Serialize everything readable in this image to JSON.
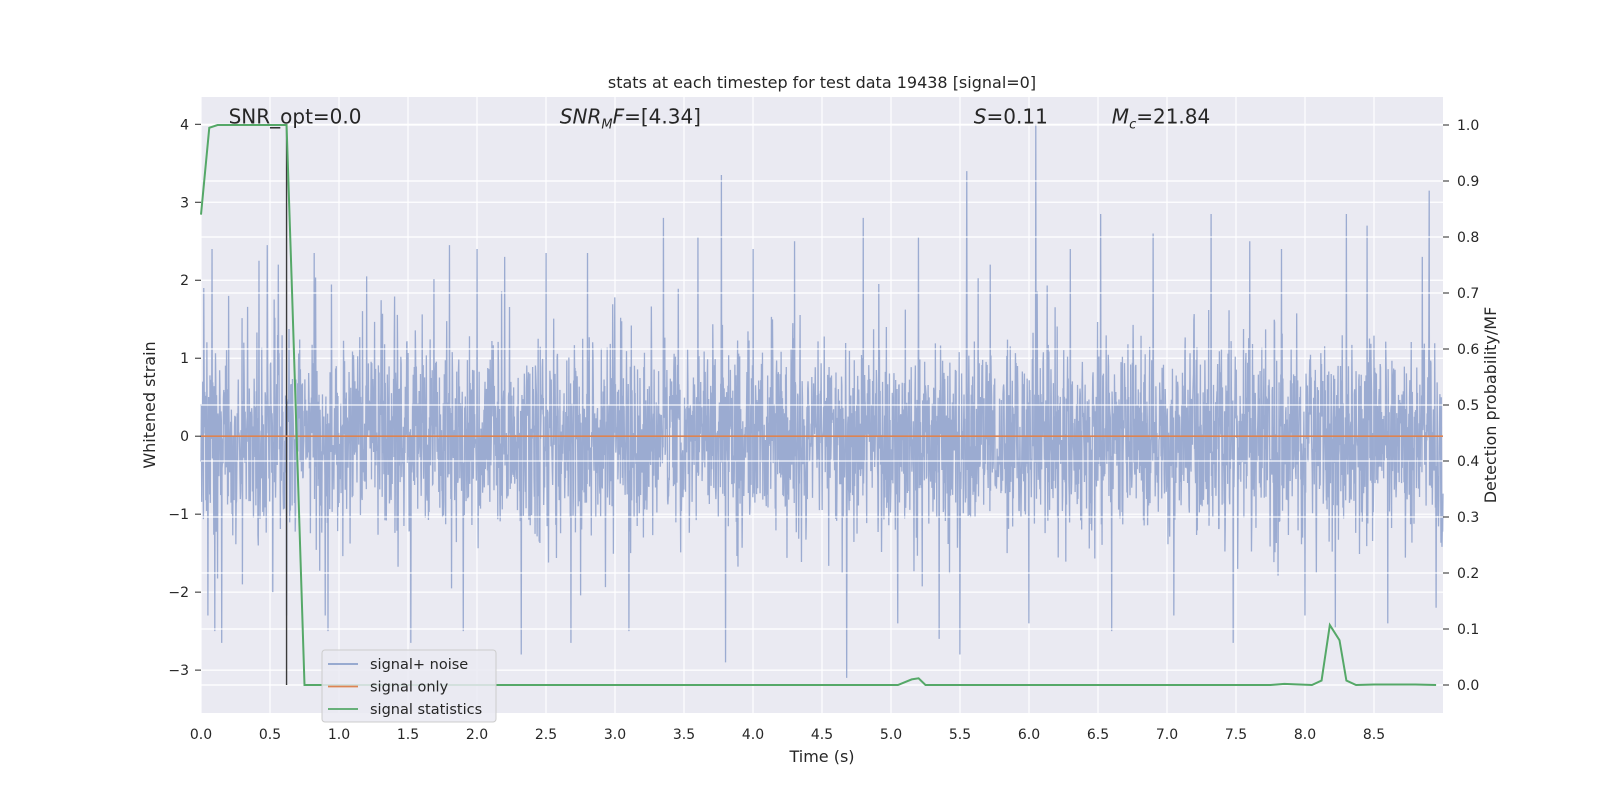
{
  "chart_data": {
    "type": "line",
    "title": "stats at each timestep for test data 19438 [signal=0]",
    "xlabel": "Time (s)",
    "ylabel": "Whitened strain",
    "ylabel_right": "Detection probability/MF",
    "xlim": [
      0.0,
      9.0
    ],
    "ylim": [
      -3.55,
      4.35
    ],
    "ylim_right": [
      -0.05,
      1.05
    ],
    "x_ticks": [
      0.0,
      0.5,
      1.0,
      1.5,
      2.0,
      2.5,
      3.0,
      3.5,
      4.0,
      4.5,
      5.0,
      5.5,
      6.0,
      6.5,
      7.0,
      7.5,
      8.0,
      8.5
    ],
    "x_tick_labels": [
      "0.0",
      "0.5",
      "1.0",
      "1.5",
      "2.0",
      "2.5",
      "3.0",
      "3.5",
      "4.0",
      "4.5",
      "5.0",
      "5.5",
      "6.0",
      "6.5",
      "7.0",
      "7.5",
      "8.0",
      "8.5"
    ],
    "y_ticks": [
      -3,
      -2,
      -1,
      0,
      1,
      2,
      3,
      4
    ],
    "y_tick_labels": [
      "−3",
      "−2",
      "−1",
      "0",
      "1",
      "2",
      "3",
      "4"
    ],
    "y_ticks_right": [
      0.0,
      0.1,
      0.2,
      0.3,
      0.4,
      0.5,
      0.6,
      0.7,
      0.8,
      0.9,
      1.0
    ],
    "y_tick_labels_right": [
      "0.0",
      "0.1",
      "0.2",
      "0.3",
      "0.4",
      "0.5",
      "0.6",
      "0.7",
      "0.8",
      "0.9",
      "1.0"
    ],
    "grid": true,
    "legend": {
      "position": "lower-left",
      "entries": [
        {
          "name": "signal+ noise",
          "color": "#8da0cb"
        },
        {
          "name": "signal only",
          "color": "#dd8452"
        },
        {
          "name": "signal statistics",
          "color": "#55a868"
        }
      ]
    },
    "annotations": [
      {
        "text": "SNR_opt=0.0",
        "x": 0.2,
        "y": 4.1
      },
      {
        "text": "SNR_MF=[4.34]",
        "x": 2.6,
        "y": 4.1
      },
      {
        "text": "S=0.11",
        "x": 5.6,
        "y": 4.1
      },
      {
        "text": "M_c=21.84",
        "x": 6.6,
        "y": 4.1
      }
    ],
    "marker_line": {
      "x": 0.62,
      "y0": 0.0,
      "y1": 1.0
    },
    "series": [
      {
        "name": "signal+ noise",
        "axis": "left",
        "color": "#8da0cb",
        "noise_sigma": 0.62,
        "peaks": [
          {
            "x": 0.02,
            "y": 1.9
          },
          {
            "x": 0.05,
            "y": -2.3
          },
          {
            "x": 0.08,
            "y": 2.4
          },
          {
            "x": 0.1,
            "y": -2.5
          },
          {
            "x": 0.15,
            "y": -2.65
          },
          {
            "x": 0.2,
            "y": 1.8
          },
          {
            "x": 0.3,
            "y": -1.9
          },
          {
            "x": 0.42,
            "y": 2.25
          },
          {
            "x": 0.48,
            "y": 2.45
          },
          {
            "x": 0.52,
            "y": -2.0
          },
          {
            "x": 0.56,
            "y": 2.2
          },
          {
            "x": 0.62,
            "y": -2.3
          },
          {
            "x": 0.82,
            "y": 2.35
          },
          {
            "x": 0.9,
            "y": -2.3
          },
          {
            "x": 0.92,
            "y": -2.5
          },
          {
            "x": 1.2,
            "y": 2.05
          },
          {
            "x": 1.52,
            "y": -2.65
          },
          {
            "x": 1.8,
            "y": 2.45
          },
          {
            "x": 1.9,
            "y": -2.5
          },
          {
            "x": 2.0,
            "y": 2.4
          },
          {
            "x": 2.2,
            "y": 2.3
          },
          {
            "x": 2.32,
            "y": -2.8
          },
          {
            "x": 2.5,
            "y": 2.35
          },
          {
            "x": 2.68,
            "y": -2.65
          },
          {
            "x": 2.8,
            "y": 2.35
          },
          {
            "x": 3.1,
            "y": -2.5
          },
          {
            "x": 3.35,
            "y": 2.8
          },
          {
            "x": 3.6,
            "y": 2.55
          },
          {
            "x": 3.77,
            "y": 3.35
          },
          {
            "x": 3.8,
            "y": -2.9
          },
          {
            "x": 4.0,
            "y": 2.4
          },
          {
            "x": 4.3,
            "y": 2.5
          },
          {
            "x": 4.68,
            "y": -3.1
          },
          {
            "x": 4.8,
            "y": 2.8
          },
          {
            "x": 5.05,
            "y": -2.4
          },
          {
            "x": 5.2,
            "y": 2.55
          },
          {
            "x": 5.35,
            "y": -2.6
          },
          {
            "x": 5.5,
            "y": -2.8
          },
          {
            "x": 5.55,
            "y": 3.4
          },
          {
            "x": 5.72,
            "y": 2.2
          },
          {
            "x": 6.0,
            "y": -2.4
          },
          {
            "x": 6.05,
            "y": 4.0
          },
          {
            "x": 6.3,
            "y": 2.4
          },
          {
            "x": 6.52,
            "y": 2.85
          },
          {
            "x": 6.6,
            "y": -2.5
          },
          {
            "x": 6.9,
            "y": 2.6
          },
          {
            "x": 7.05,
            "y": -2.3
          },
          {
            "x": 7.32,
            "y": 2.85
          },
          {
            "x": 7.48,
            "y": -2.65
          },
          {
            "x": 7.6,
            "y": 2.5
          },
          {
            "x": 7.83,
            "y": 2.4
          },
          {
            "x": 8.0,
            "y": -2.3
          },
          {
            "x": 8.22,
            "y": -2.45
          },
          {
            "x": 8.3,
            "y": 2.85
          },
          {
            "x": 8.45,
            "y": 2.7
          },
          {
            "x": 8.6,
            "y": -2.4
          },
          {
            "x": 8.85,
            "y": 2.3
          },
          {
            "x": 8.9,
            "y": 3.15
          },
          {
            "x": 8.95,
            "y": -2.2
          }
        ]
      },
      {
        "name": "signal only",
        "axis": "left",
        "color": "#dd8452",
        "x": [
          0.0,
          9.0
        ],
        "y": [
          0.0,
          0.0
        ]
      },
      {
        "name": "signal statistics",
        "axis": "right",
        "color": "#55a868",
        "x": [
          0.0,
          0.06,
          0.12,
          0.62,
          0.66,
          0.75,
          5.05,
          5.15,
          5.2,
          5.25,
          7.75,
          7.85,
          8.05,
          8.12,
          8.18,
          8.25,
          8.3,
          8.37,
          8.5,
          8.8,
          8.95
        ],
        "y": [
          0.84,
          0.995,
          1.0,
          1.0,
          0.7,
          0.0,
          0.0,
          0.01,
          0.012,
          0.0,
          0.0,
          0.002,
          0.0,
          0.008,
          0.107,
          0.08,
          0.008,
          0.0,
          0.001,
          0.001,
          0.0
        ]
      }
    ]
  }
}
